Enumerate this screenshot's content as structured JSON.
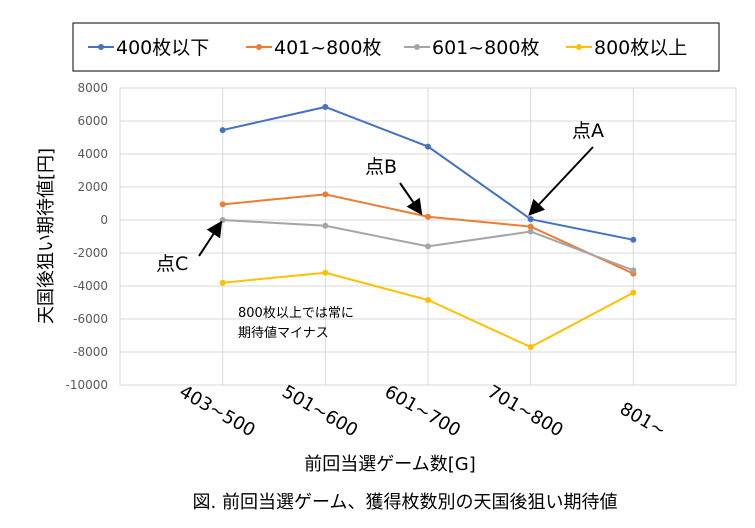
{
  "chart_data": {
    "type": "line",
    "title": "",
    "caption": "図. 前回当選ゲーム、獲得枚数別の天国後狙い期待値",
    "xlabel": "前回当選ゲーム数[G]",
    "ylabel": "天国後狙い期待値[円]",
    "categories": [
      "403~500",
      "501~600",
      "601~700",
      "701~800",
      "801~"
    ],
    "ylim": [
      -10000,
      8000
    ],
    "yticks": [
      8000,
      6000,
      4000,
      2000,
      0,
      -2000,
      -4000,
      -6000,
      -8000,
      -10000
    ],
    "ytick_labels": [
      "8000",
      "6000",
      "4000",
      "2000",
      "0",
      "-2000",
      "-4000",
      "-6000",
      "-8000",
      "-10000"
    ],
    "grid": true,
    "legend_placement": "top",
    "series": [
      {
        "name": "400枚以下",
        "color": "#4472C4",
        "values": [
          5450,
          6850,
          4450,
          50,
          -1200
        ]
      },
      {
        "name": "401~800枚",
        "color": "#ED7D31",
        "values": [
          950,
          1550,
          200,
          -400,
          -3250
        ]
      },
      {
        "name": "601~800枚",
        "color": "#A5A5A5",
        "values": [
          0,
          -350,
          -1600,
          -700,
          -3050
        ]
      },
      {
        "name": "800枚以上",
        "color": "#FFC000",
        "values": [
          -3800,
          -3200,
          -4850,
          -7700,
          -4400
        ]
      }
    ],
    "annotations": [
      {
        "text": "点A",
        "series": 0,
        "category": "701~800"
      },
      {
        "text": "点B",
        "series": 1,
        "category": "601~700"
      },
      {
        "text": "点C",
        "series": 2,
        "category": "403~500"
      },
      {
        "text": "800枚以上では常に",
        "line2": "期待値マイナス"
      }
    ]
  }
}
